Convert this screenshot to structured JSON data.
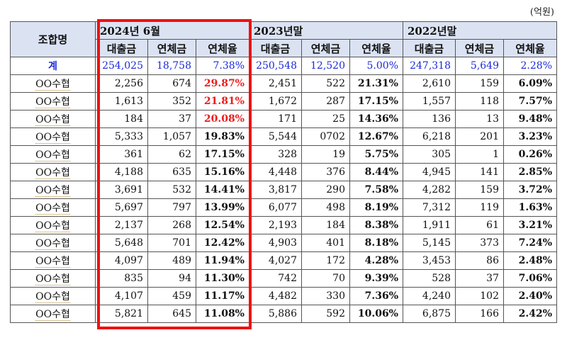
{
  "unit": "(억원)",
  "header": {
    "union_col": "조합명",
    "periods": [
      "2024년 6월",
      "2023년말",
      "2022년말"
    ],
    "sub_cols": [
      "대출금",
      "연체금",
      "연체율"
    ]
  },
  "total": {
    "name": "계",
    "p1": [
      "254,025",
      "18,758",
      "7.38%"
    ],
    "p2": [
      "250,548",
      "12,520",
      "5.00%"
    ],
    "p3": [
      "247,318",
      "5,649",
      "2.28%"
    ]
  },
  "rows": [
    {
      "name": "OO수협",
      "p1": [
        "2,256",
        "674",
        "29.87%"
      ],
      "p2": [
        "2,451",
        "522",
        "21.31%"
      ],
      "p3": [
        "2,610",
        "159",
        "6.09%"
      ]
    },
    {
      "name": "OO수협",
      "p1": [
        "1,613",
        "352",
        "21.81%"
      ],
      "p2": [
        "1,672",
        "287",
        "17.15%"
      ],
      "p3": [
        "1,557",
        "118",
        "7.57%"
      ]
    },
    {
      "name": "OO수협",
      "p1": [
        "184",
        "37",
        "20.08%"
      ],
      "p2": [
        "171",
        "25",
        "14.36%"
      ],
      "p3": [
        "136",
        "13",
        "9.48%"
      ]
    },
    {
      "name": "OO수협",
      "p1": [
        "5,333",
        "1,057",
        "19.83%"
      ],
      "p2": [
        "5,544",
        "0702",
        "12.67%"
      ],
      "p3": [
        "6,218",
        "201",
        "3.23%"
      ]
    },
    {
      "name": "OO수협",
      "p1": [
        "361",
        "62",
        "17.15%"
      ],
      "p2": [
        "328",
        "19",
        "5.75%"
      ],
      "p3": [
        "305",
        "1",
        "0.26%"
      ]
    },
    {
      "name": "OO수협",
      "p1": [
        "4,188",
        "635",
        "15.16%"
      ],
      "p2": [
        "4,448",
        "376",
        "8.44%"
      ],
      "p3": [
        "4,945",
        "141",
        "2.85%"
      ]
    },
    {
      "name": "OO수협",
      "p1": [
        "3,691",
        "532",
        "14.41%"
      ],
      "p2": [
        "3,817",
        "290",
        "7.58%"
      ],
      "p3": [
        "4,282",
        "159",
        "3.72%"
      ]
    },
    {
      "name": "OO수협",
      "p1": [
        "5,697",
        "797",
        "13.99%"
      ],
      "p2": [
        "6,077",
        "498",
        "8.19%"
      ],
      "p3": [
        "7,312",
        "119",
        "1.63%"
      ]
    },
    {
      "name": "OO수협",
      "p1": [
        "2,137",
        "268",
        "12.54%"
      ],
      "p2": [
        "2,193",
        "184",
        "8.38%"
      ],
      "p3": [
        "1,911",
        "61",
        "3.21%"
      ]
    },
    {
      "name": "OO수협",
      "p1": [
        "5,648",
        "701",
        "12.42%"
      ],
      "p2": [
        "4,903",
        "401",
        "8.18%"
      ],
      "p3": [
        "5,145",
        "373",
        "7.24%"
      ]
    },
    {
      "name": "OO수협",
      "p1": [
        "4,097",
        "489",
        "11.94%"
      ],
      "p2": [
        "4,027",
        "172",
        "4.28%"
      ],
      "p3": [
        "3,453",
        "86",
        "2.48%"
      ]
    },
    {
      "name": "OO수협",
      "p1": [
        "835",
        "94",
        "11.30%"
      ],
      "p2": [
        "742",
        "70",
        "9.39%"
      ],
      "p3": [
        "528",
        "37",
        "7.06%"
      ]
    },
    {
      "name": "OO수협",
      "p1": [
        "4,107",
        "459",
        "11.17%"
      ],
      "p2": [
        "4,482",
        "330",
        "7.36%"
      ],
      "p3": [
        "4,240",
        "102",
        "2.40%"
      ]
    },
    {
      "name": "OO수협",
      "p1": [
        "5,821",
        "645",
        "11.08%"
      ],
      "p2": [
        "5,886",
        "592",
        "10.06%"
      ],
      "p3": [
        "6,875",
        "166",
        "2.42%"
      ]
    }
  ],
  "colors": {
    "header_bg": "#dbe3f3",
    "total_text": "#1a2ad8",
    "highlight_red": "#ee1111",
    "top_rate_red": "#ee1c1c"
  },
  "red_rate_rows": [
    0,
    1,
    2
  ]
}
